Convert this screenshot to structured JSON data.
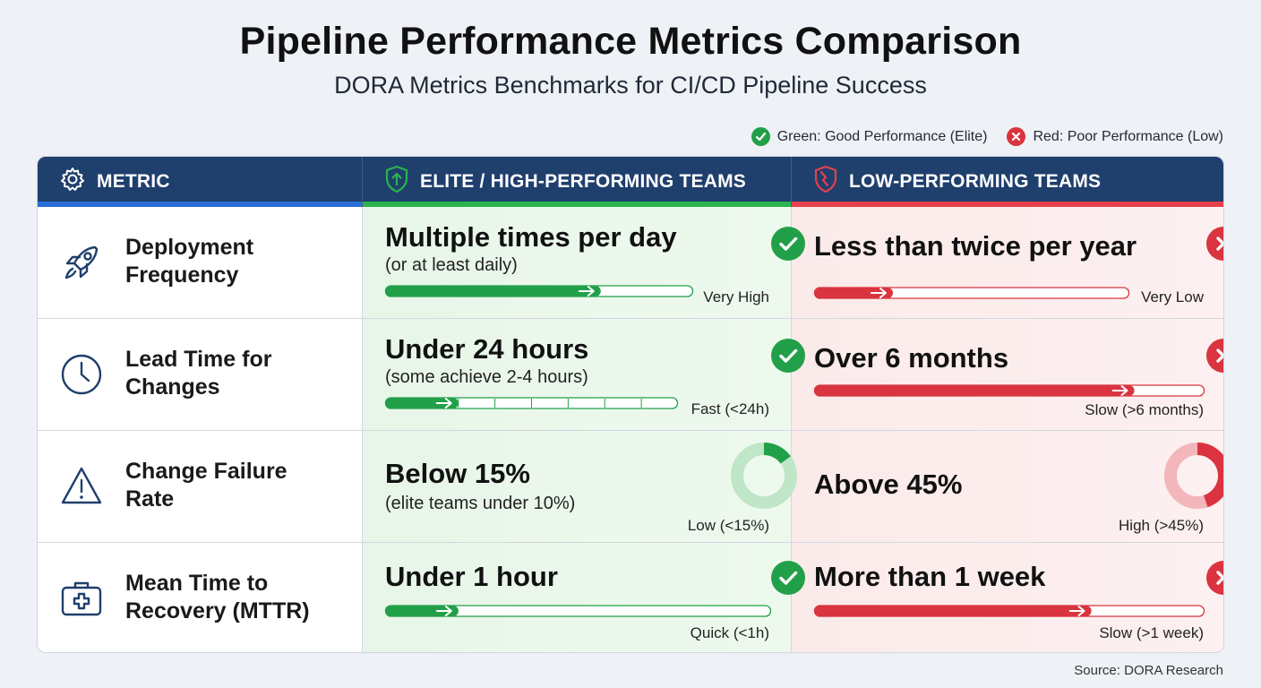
{
  "header": {
    "title": "Pipeline Performance Metrics Comparison",
    "subtitle": "DORA Metrics Benchmarks for CI/CD Pipeline Success"
  },
  "legend": {
    "good_label": "Green: Good Performance (Elite)",
    "poor_label": "Red: Poor Performance (Low)"
  },
  "colors": {
    "header_bg": "#1f3f6d",
    "metric_accent": "#2a6fd6",
    "good": "#22a049",
    "poor": "#d9343f"
  },
  "columns": {
    "metric": "METRIC",
    "elite": "ELITE / HIGH-PERFORMING TEAMS",
    "low": "LOW-PERFORMING TEAMS"
  },
  "rows": [
    {
      "metric": [
        "Deployment",
        "Frequency"
      ],
      "icon": "rocket-icon",
      "elite": {
        "main": "Multiple times per day",
        "sub": "(or at least daily)",
        "rating": "Very High",
        "progress": 0.7,
        "indicator": "check"
      },
      "low": {
        "main": "Less than twice per year",
        "sub": "",
        "rating": "Very Low",
        "progress": 0.25,
        "indicator": "cross"
      }
    },
    {
      "metric": [
        "Lead Time for",
        "Changes"
      ],
      "icon": "clock-icon",
      "elite": {
        "main": "Under 24 hours",
        "sub": "(some achieve 2-4 hours)",
        "rating": "Fast (<24h)",
        "progress": 0.25,
        "indicator": "check"
      },
      "low": {
        "main": "Over 6 months",
        "sub": "",
        "rating": "Slow (>6 months)",
        "progress": 0.82,
        "indicator": "cross"
      }
    },
    {
      "metric": [
        "Change Failure",
        "Rate"
      ],
      "icon": "warning-icon",
      "elite": {
        "main": "Below 15%",
        "sub": "(elite teams under 10%)",
        "rating": "Low (<15%)",
        "donut": 0.15
      },
      "low": {
        "main": "Above 45%",
        "sub": "",
        "rating": "High (>45%)",
        "donut": 0.45
      }
    },
    {
      "metric": [
        "Mean Time to",
        "Recovery (MTTR)"
      ],
      "icon": "first-aid-kit-icon",
      "elite": {
        "main": "Under 1 hour",
        "sub": "",
        "rating": "Quick (<1h)",
        "progress": 0.19,
        "indicator": "check"
      },
      "low": {
        "main": "More than 1 week",
        "sub": "",
        "rating": "Slow (>1 week)",
        "progress": 0.71,
        "indicator": "cross"
      }
    }
  ],
  "source": "Source: DORA Research"
}
